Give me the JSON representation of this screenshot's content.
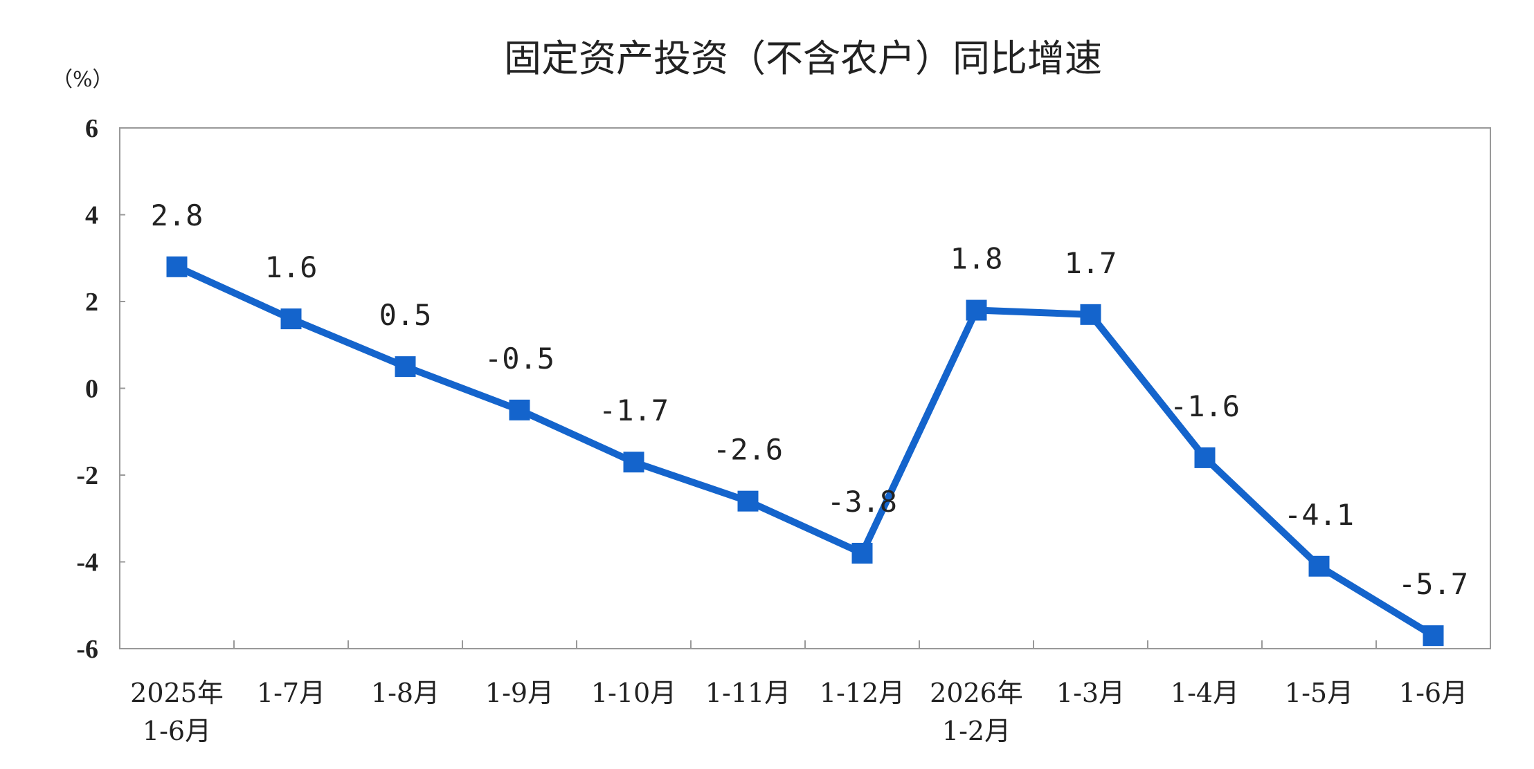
{
  "chart_data": {
    "type": "line",
    "title": "固定资产投资（不含农户）同比增速",
    "unit_label": "（%）",
    "categories": [
      [
        "2025年",
        "1-6月"
      ],
      [
        "1-7月"
      ],
      [
        "1-8月"
      ],
      [
        "1-9月"
      ],
      [
        "1-10月"
      ],
      [
        "1-11月"
      ],
      [
        "1-12月"
      ],
      [
        "2026年",
        "1-2月"
      ],
      [
        "1-3月"
      ],
      [
        "1-4月"
      ],
      [
        "1-5月"
      ],
      [
        "1-6月"
      ]
    ],
    "series": [
      {
        "values": [
          2.8,
          1.6,
          0.5,
          -0.5,
          -1.7,
          -2.6,
          -3.8,
          1.8,
          1.7,
          -1.6,
          -4.1,
          -5.7
        ]
      }
    ],
    "data_labels": [
      "2.8",
      "1.6",
      "0.5",
      "-0.5",
      "-1.7",
      "-2.6",
      "-3.8",
      "1.8",
      "1.7",
      "-1.6",
      "-4.1",
      "-5.7"
    ],
    "ylim": [
      -6,
      6
    ],
    "yticks": [
      6,
      4,
      2,
      0,
      -2,
      -4,
      -6
    ],
    "ytick_labels": [
      "6",
      "4",
      "2",
      "0",
      "-2",
      "-4",
      "-6"
    ],
    "grid": false,
    "legend": "none",
    "colors": {
      "series": "#1464CC",
      "axis": "#999999",
      "text": "#222222"
    }
  }
}
